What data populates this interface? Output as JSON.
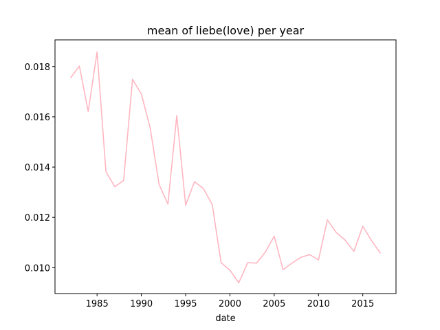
{
  "chart_data": {
    "type": "line",
    "title": "mean of liebe(love) per year",
    "xlabel": "date",
    "ylabel": "",
    "xlim": [
      1980.25,
      2018.75
    ],
    "ylim": [
      0.00897,
      0.01906
    ],
    "x_ticks": [
      1985,
      1990,
      1995,
      2000,
      2005,
      2010,
      2015
    ],
    "x_tick_labels": [
      "1985",
      "1990",
      "1995",
      "2000",
      "2005",
      "2010",
      "2015"
    ],
    "y_ticks": [
      0.01,
      0.012,
      0.014,
      0.016,
      0.018
    ],
    "y_tick_labels": [
      "0.010",
      "0.012",
      "0.014",
      "0.016",
      "0.018"
    ],
    "grid": false,
    "line_color": "#ffb6c1",
    "series": [
      {
        "x": [
          1982,
          1983,
          1984,
          1985,
          1986,
          1987,
          1988,
          1989,
          1990,
          1991,
          1992,
          1993,
          1994,
          1995,
          1996,
          1997,
          1998,
          1999,
          2000,
          2001,
          2002,
          2003,
          2004,
          2005,
          2006,
          2007,
          2008,
          2009,
          2010,
          2011,
          2012,
          2013,
          2014,
          2015,
          2016,
          2017
        ],
        "values": [
          0.01755,
          0.01802,
          0.01621,
          0.01858,
          0.01382,
          0.01322,
          0.01347,
          0.01749,
          0.01691,
          0.01555,
          0.01331,
          0.01253,
          0.01605,
          0.01248,
          0.01342,
          0.01315,
          0.01251,
          0.0102,
          0.0099,
          0.0094,
          0.0102,
          0.01018,
          0.01062,
          0.01125,
          0.00992,
          0.01018,
          0.01041,
          0.01052,
          0.01031,
          0.0119,
          0.0114,
          0.0111,
          0.01065,
          0.01165,
          0.01107,
          0.01057
        ]
      }
    ]
  }
}
